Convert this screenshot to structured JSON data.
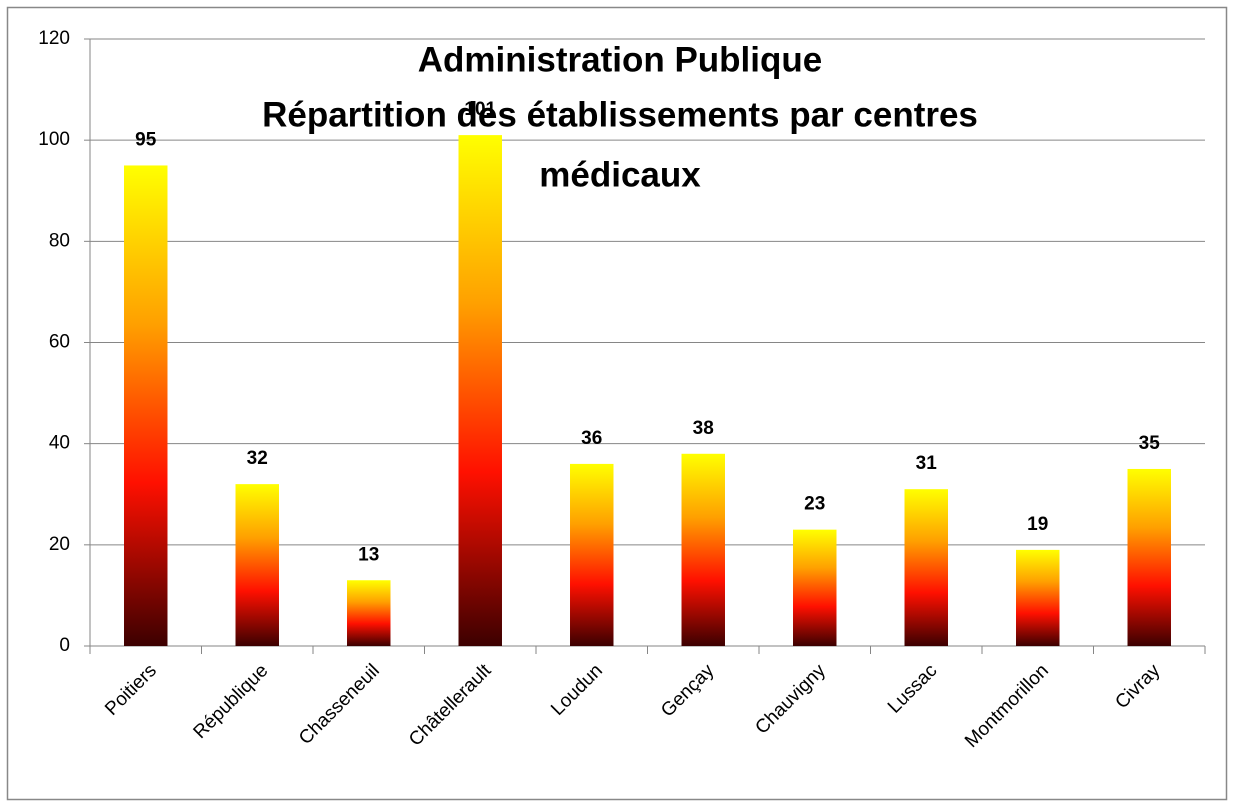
{
  "chart_data": {
    "type": "bar",
    "title": [
      "Administration Publique",
      "Répartition des établissements par centres",
      "médicaux"
    ],
    "categories": [
      "Poitiers",
      "République",
      "Chasseneuil",
      "Châtellerault",
      "Loudun",
      "Gençay",
      "Chauvigny",
      "Lussac",
      "Montmorillon",
      "Civray"
    ],
    "values": [
      95,
      32,
      13,
      101,
      36,
      38,
      23,
      31,
      19,
      35
    ],
    "colors": [
      "#ffff00",
      "#ffa000",
      "#ff1000",
      "#3c0000"
    ],
    "ylim": [
      0,
      120
    ],
    "yticks": [
      0,
      20,
      40,
      60,
      80,
      100,
      120
    ],
    "grid": true
  }
}
